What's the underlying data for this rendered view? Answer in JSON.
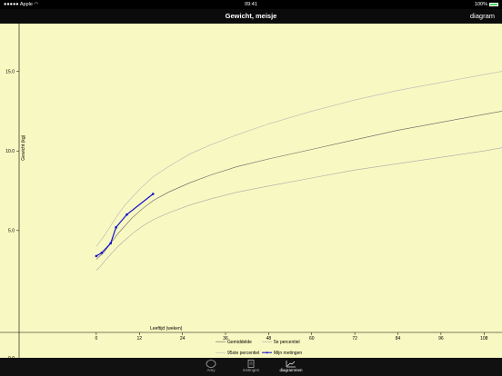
{
  "status": {
    "carrier": "Apple",
    "time": "09:41",
    "battery": "100%"
  },
  "nav": {
    "title": "Gewicht, meisje",
    "right_label": "diagram"
  },
  "tabs": [
    {
      "label": "Amy",
      "icon": "baby-icon"
    },
    {
      "label": "metingen",
      "icon": "clipboard-icon"
    },
    {
      "label": "diagrammen",
      "icon": "chart-icon"
    }
  ],
  "chart_data": {
    "type": "line",
    "xlabel": "Leeftijd (weken)",
    "ylabel": "Gewicht (kg)",
    "x_ticks": [
      0,
      12,
      24,
      36,
      48,
      60,
      72,
      84,
      96,
      108
    ],
    "y_ticks": [
      "5.0",
      "10.0",
      "15.0"
    ],
    "y_tick_bottom": "0.0",
    "xlim": [
      -21.5,
      113
    ],
    "ylim": [
      -1.4,
      18
    ],
    "series": [
      {
        "name": "Gemiddelde",
        "color": "#606060",
        "x": [
          0,
          1,
          2,
          4,
          6,
          8,
          10,
          13,
          16,
          20,
          26,
          32,
          39,
          48,
          60,
          72,
          84,
          96,
          108,
          113
        ],
        "y": [
          3.2,
          3.4,
          3.6,
          4.2,
          4.8,
          5.3,
          5.8,
          6.4,
          6.9,
          7.4,
          8.0,
          8.5,
          9.0,
          9.5,
          10.1,
          10.7,
          11.3,
          11.8,
          12.3,
          12.5
        ]
      },
      {
        "name": "5e percentiel",
        "color": "#a8a8a8",
        "x": [
          0,
          1,
          2,
          4,
          6,
          8,
          10,
          13,
          16,
          20,
          26,
          32,
          39,
          48,
          60,
          72,
          84,
          96,
          108,
          113
        ],
        "y": [
          2.5,
          2.7,
          3.0,
          3.5,
          4.0,
          4.4,
          4.8,
          5.3,
          5.7,
          6.1,
          6.6,
          7.0,
          7.4,
          7.8,
          8.3,
          8.8,
          9.2,
          9.6,
          10.0,
          10.2
        ]
      },
      {
        "name": "95ste percentiel",
        "color": "#b8b8b8",
        "x": [
          0,
          1,
          2,
          4,
          6,
          8,
          10,
          13,
          16,
          20,
          26,
          32,
          39,
          48,
          60,
          72,
          84,
          96,
          108,
          113
        ],
        "y": [
          4.0,
          4.3,
          4.6,
          5.3,
          6.0,
          6.6,
          7.1,
          7.8,
          8.4,
          9.0,
          9.8,
          10.4,
          11.0,
          11.7,
          12.5,
          13.2,
          13.8,
          14.3,
          14.8,
          15.0
        ]
      },
      {
        "name": "Mijn metingen",
        "color": "#1010d0",
        "markers": true,
        "x": [
          0,
          1.5,
          4,
          5.5,
          8.5,
          15.8
        ],
        "y": [
          3.4,
          3.6,
          4.2,
          5.2,
          6.0,
          7.3
        ]
      }
    ]
  }
}
